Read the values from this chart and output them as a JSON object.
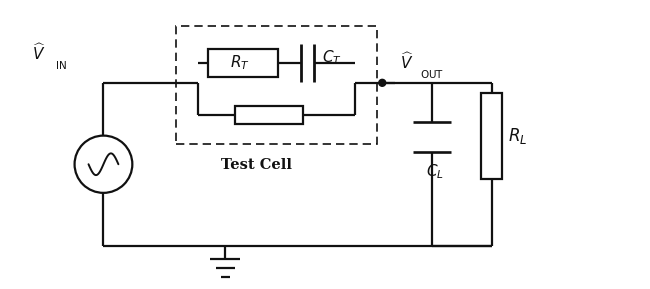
{
  "bg_color": "#ffffff",
  "line_color": "#111111",
  "line_width": 1.6,
  "fig_width": 6.5,
  "fig_height": 2.89,
  "dpi": 100,
  "xlim": [
    0,
    13
  ],
  "ylim": [
    0,
    5.8
  ]
}
